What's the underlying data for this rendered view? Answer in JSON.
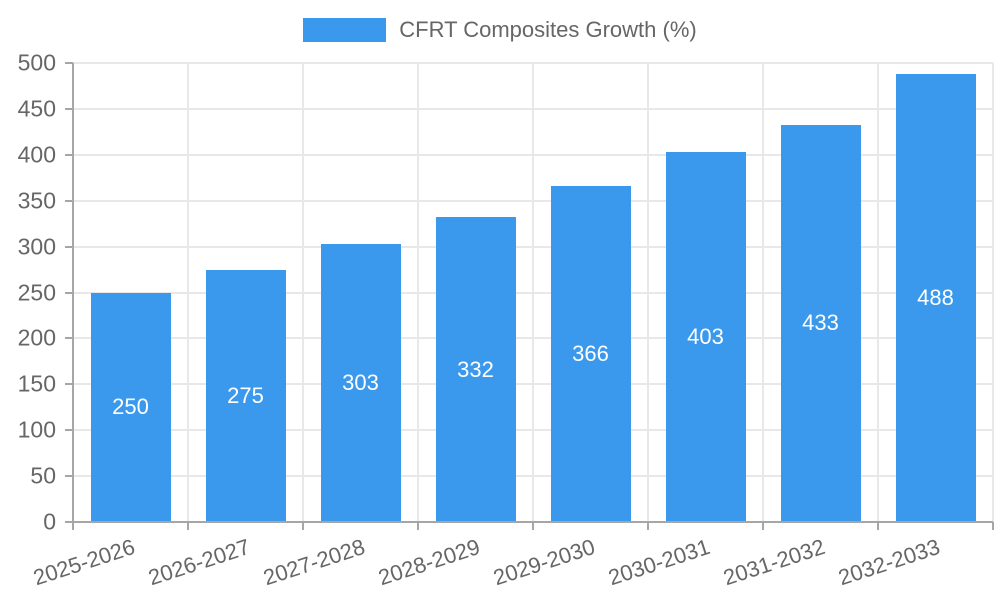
{
  "chart_data": {
    "type": "bar",
    "title": "CFRT Composites Growth (%)",
    "legend": {
      "position": "top-center",
      "entries": [
        "CFRT Composites Growth (%)"
      ]
    },
    "categories": [
      "2025-2026",
      "2026-2027",
      "2027-2028",
      "2028-2029",
      "2029-2030",
      "2030-2031",
      "2031-2032",
      "2032-2033"
    ],
    "values": [
      250,
      275,
      303,
      332,
      366,
      403,
      433,
      488
    ],
    "value_labels_visible": true,
    "value_label_position": "center",
    "xlabel": "",
    "ylabel": "",
    "ylim": [
      0,
      500
    ],
    "ytick_step": 50,
    "grid": true,
    "x_label_rotation_deg": -18,
    "colors": {
      "bar": "#3a99ec",
      "grid_line": "#e8e8e8",
      "axis_line": "#a6a6a6",
      "tick_label": "#666666",
      "value_label": "#ffffff",
      "legend_text": "#666666",
      "background": "#ffffff"
    }
  }
}
